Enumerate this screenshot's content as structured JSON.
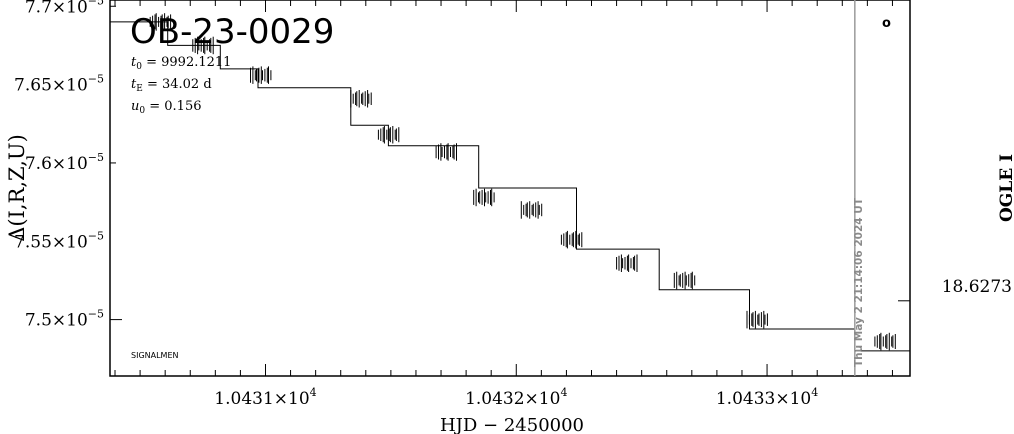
{
  "chart_data": {
    "type": "line",
    "title": "OB-23-0029",
    "params": {
      "t0": {
        "symbol": "t",
        "sub": "0",
        "value": "= 9992.1211"
      },
      "tE": {
        "symbol": "t",
        "sub": "E",
        "value": "= 34.02  d"
      },
      "u0": {
        "symbol": "u",
        "sub": "0",
        "value": "= 0.156"
      }
    },
    "xlabel": "HJD  −  2450000",
    "ylabel": "Δ(I,R,Z,U)",
    "right_label": "OGLE I",
    "right_tick_label": "18.6273",
    "stamp": "Thu May  2 21:14:06 2024 UT",
    "footer_note": "SIGNALMEN",
    "legend_marker": "o",
    "xlim": [
      10430.38,
      10433.57
    ],
    "ylim": [
      7.464e-05,
      7.704e-05
    ],
    "x_ticks": [
      {
        "value": 10431,
        "mantissa": "1.0431×10",
        "exp": "4"
      },
      {
        "value": 10432,
        "mantissa": "1.0432×10",
        "exp": "4"
      },
      {
        "value": 10433,
        "mantissa": "1.0433×10",
        "exp": "4"
      }
    ],
    "y_ticks": [
      {
        "value": 7.5e-05,
        "mantissa": "7.5×10",
        "exp": "−5"
      },
      {
        "value": 7.55e-05,
        "mantissa": "7.55×10",
        "exp": "−5"
      },
      {
        "value": 7.6e-05,
        "mantissa": "7.6×10",
        "exp": "−5"
      },
      {
        "value": 7.65e-05,
        "mantissa": "7.65×10",
        "exp": "−5"
      },
      {
        "value": 7.7e-05,
        "mantissa": "7.7×10",
        "exp": "−5"
      }
    ],
    "vline_x": 10433.35,
    "right_tick_value": 7.512e-05,
    "series": [
      {
        "x": [
          10430.38,
          10430.61,
          10430.61,
          10430.82,
          10430.82,
          10430.97,
          10430.97,
          10431.34,
          10431.34,
          10431.49,
          10431.49,
          10431.85,
          10431.85,
          10432.24,
          10432.24,
          10432.57,
          10432.57,
          10432.93,
          10432.93,
          10433.35,
          10433.35,
          10433.57
        ],
        "y": [
          7.69e-05,
          7.69e-05,
          7.675e-05,
          7.675e-05,
          7.66e-05,
          7.66e-05,
          7.648e-05,
          7.648e-05,
          7.624e-05,
          7.624e-05,
          7.611e-05,
          7.611e-05,
          7.584e-05,
          7.584e-05,
          7.545e-05,
          7.545e-05,
          7.519e-05,
          7.519e-05,
          7.494e-05,
          7.494e-05,
          7.48e-05,
          7.48e-05
        ]
      }
    ],
    "clusters": [
      {
        "x": 10430.58,
        "y": 7.69e-05
      },
      {
        "x": 10430.75,
        "y": 7.675e-05
      },
      {
        "x": 10430.98,
        "y": 7.656e-05
      },
      {
        "x": 10431.38,
        "y": 7.641e-05
      },
      {
        "x": 10431.49,
        "y": 7.618e-05
      },
      {
        "x": 10431.72,
        "y": 7.607e-05
      },
      {
        "x": 10431.87,
        "y": 7.578e-05
      },
      {
        "x": 10432.06,
        "y": 7.57e-05
      },
      {
        "x": 10432.22,
        "y": 7.551e-05
      },
      {
        "x": 10432.44,
        "y": 7.536e-05
      },
      {
        "x": 10432.67,
        "y": 7.525e-05
      },
      {
        "x": 10432.96,
        "y": 7.5e-05
      },
      {
        "x": 10433.47,
        "y": 7.486e-05
      }
    ]
  }
}
